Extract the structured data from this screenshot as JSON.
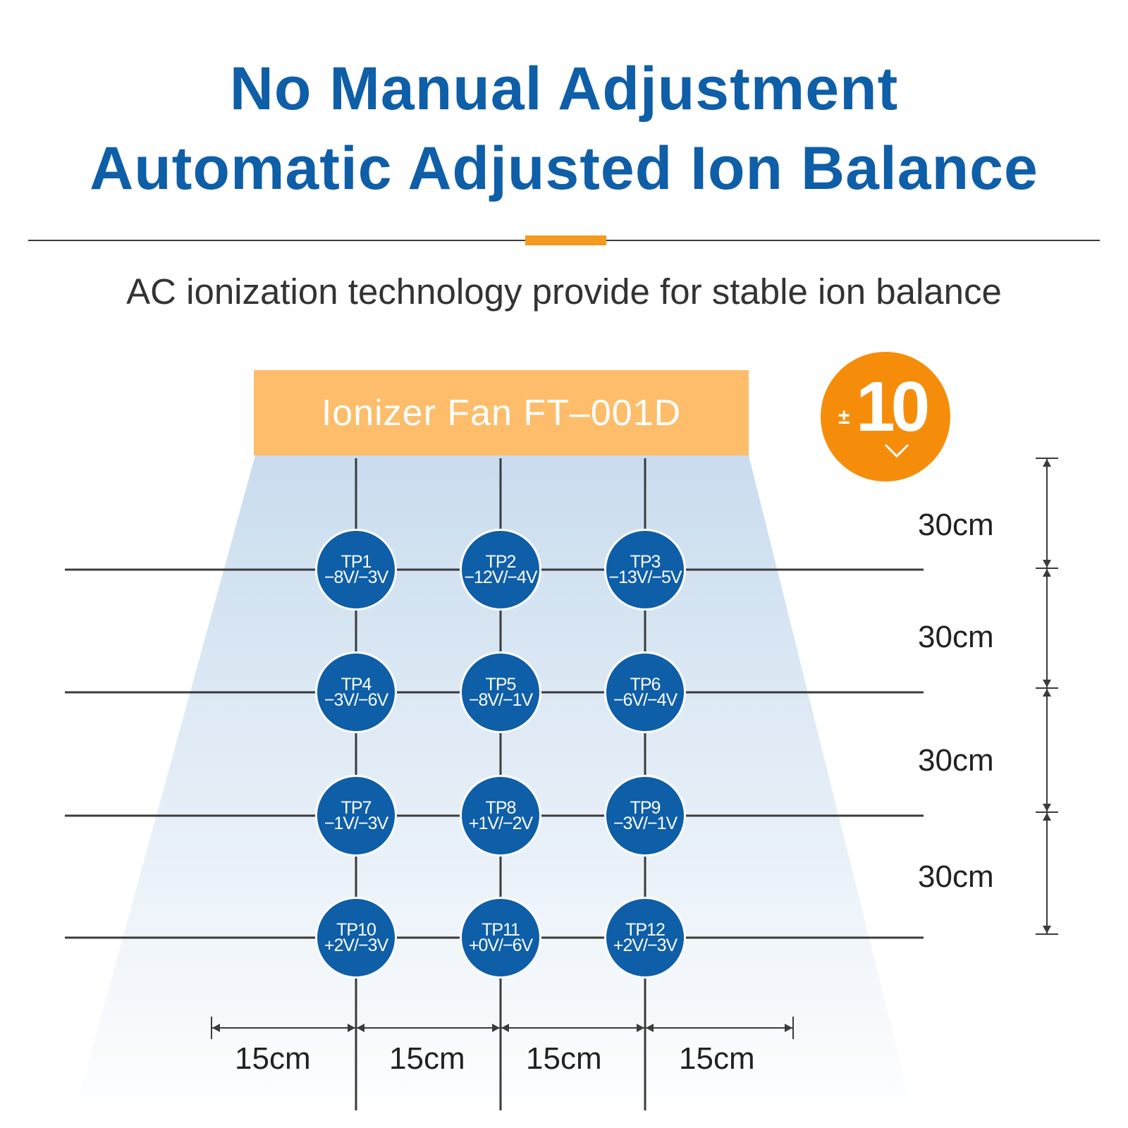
{
  "header": {
    "title_line1": "No Manual Adjustment",
    "title_line2": "Automatic Adjusted Ion Balance",
    "subtitle": "AC ionization technology provide for stable ion balance"
  },
  "fan": {
    "label": "Ionizer Fan FT–001D"
  },
  "badge": {
    "prefix": "±",
    "value": "10"
  },
  "colors": {
    "blue": "#0e5ea8",
    "orange": "#f58d0b",
    "fan": "#fdbd6b",
    "accent": "#f49a1e"
  },
  "test_points": [
    {
      "name": "TP1",
      "value": "−8V/−3V"
    },
    {
      "name": "TP2",
      "value": "−12V/−4V"
    },
    {
      "name": "TP3",
      "value": "−13V/−5V"
    },
    {
      "name": "TP4",
      "value": "−3V/−6V"
    },
    {
      "name": "TP5",
      "value": "−8V/−1V"
    },
    {
      "name": "TP6",
      "value": "−6V/−4V"
    },
    {
      "name": "TP7",
      "value": "−1V/−3V"
    },
    {
      "name": "TP8",
      "value": "+1V/−2V"
    },
    {
      "name": "TP9",
      "value": "−3V/−1V"
    },
    {
      "name": "TP10",
      "value": "+2V/−3V"
    },
    {
      "name": "TP11",
      "value": "+0V/−6V"
    },
    {
      "name": "TP12",
      "value": "+2V/−3V"
    }
  ],
  "vertical_dims": [
    "30cm",
    "30cm",
    "30cm",
    "30cm"
  ],
  "horizontal_dims": [
    "15cm",
    "15cm",
    "15cm",
    "15cm"
  ]
}
